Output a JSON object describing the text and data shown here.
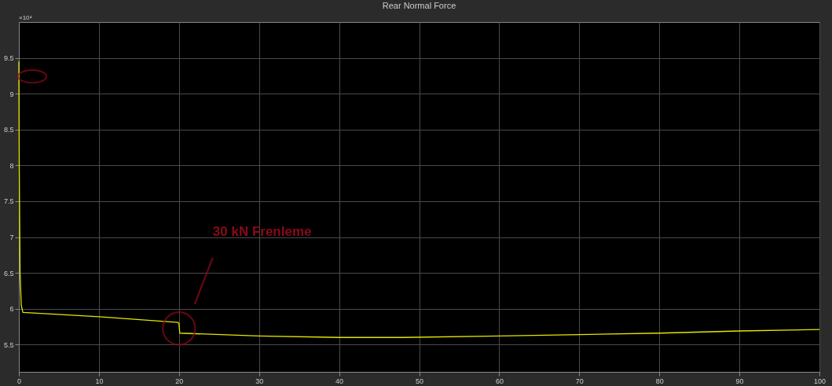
{
  "chart_data": {
    "type": "line",
    "title": "Rear Normal Force",
    "x": [
      0,
      0.05,
      0.15,
      0.3,
      0.5,
      10,
      19.9,
      20.0,
      20.1,
      30,
      40,
      48,
      60,
      70,
      80,
      90,
      100
    ],
    "series": [
      {
        "color": "#e6e600",
        "values": [
          9.45,
          8.0,
          6.5,
          6.05,
          5.95,
          5.89,
          5.81,
          5.79,
          5.66,
          5.62,
          5.6,
          5.6,
          5.62,
          5.64,
          5.66,
          5.69,
          5.71
        ]
      }
    ],
    "xlim": [
      0,
      100
    ],
    "xticks": [
      0,
      10,
      20,
      30,
      40,
      50,
      60,
      70,
      80,
      90,
      100
    ],
    "ylim": [
      5.12,
      10.0
    ],
    "yticks": [
      5.5,
      6,
      6.5,
      7,
      7.5,
      8,
      8.5,
      9,
      9.5
    ],
    "annotations": [
      "×10⁴",
      "30 kN Frenleme"
    ],
    "grid": true,
    "marker": "none",
    "line_style": "solid"
  }
}
